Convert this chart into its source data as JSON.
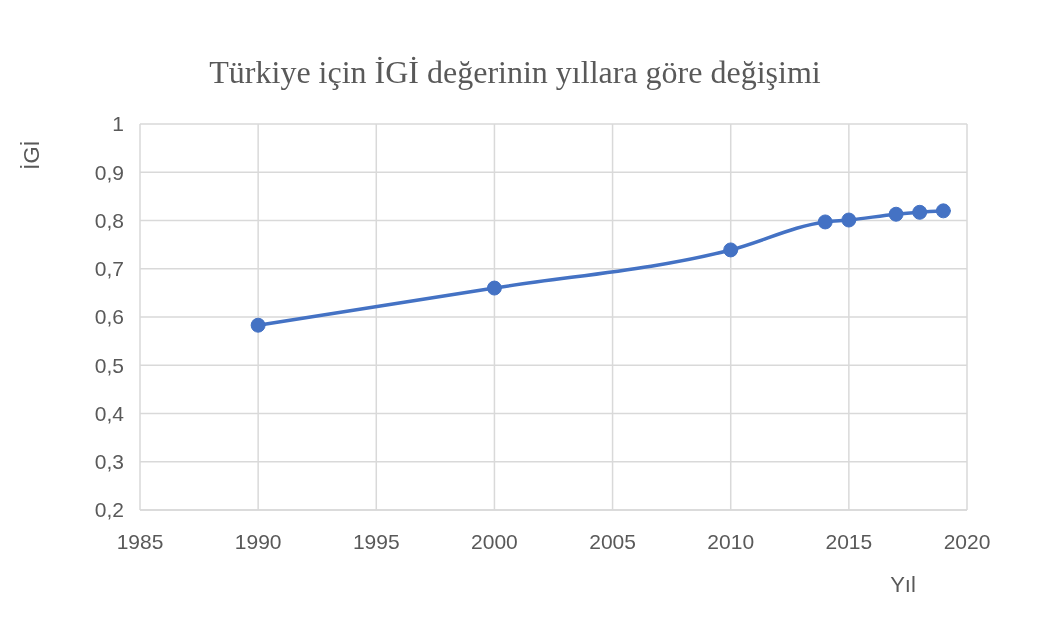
{
  "chart_data": {
    "type": "line",
    "title": "Türkiye için İGİ değerinin yıllara göre değişimi",
    "xlabel": "Yıl",
    "ylabel": "İGİ",
    "x": [
      1990,
      2000,
      2010,
      2014,
      2015,
      2017,
      2018,
      2019
    ],
    "series": [
      {
        "color": "#4472c4",
        "values": [
          0.583,
          0.66,
          0.739,
          0.797,
          0.801,
          0.813,
          0.817,
          0.82
        ]
      }
    ],
    "xlim": [
      1985,
      2020
    ],
    "xticks": [
      1985,
      1990,
      1995,
      2000,
      2005,
      2010,
      2015,
      2020
    ],
    "ylim": [
      0.2,
      1
    ],
    "yticks": [
      {
        "value": 0.2,
        "label": "0,2"
      },
      {
        "value": 0.3,
        "label": "0,3"
      },
      {
        "value": 0.4,
        "label": "0,4"
      },
      {
        "value": 0.5,
        "label": "0,5"
      },
      {
        "value": 0.6,
        "label": "0,6"
      },
      {
        "value": 0.7,
        "label": "0,7"
      },
      {
        "value": 0.8,
        "label": "0,8"
      },
      {
        "value": 0.9,
        "label": "0,9"
      },
      1
    ],
    "grid": true,
    "marker": "circle",
    "line_style": "solid"
  }
}
